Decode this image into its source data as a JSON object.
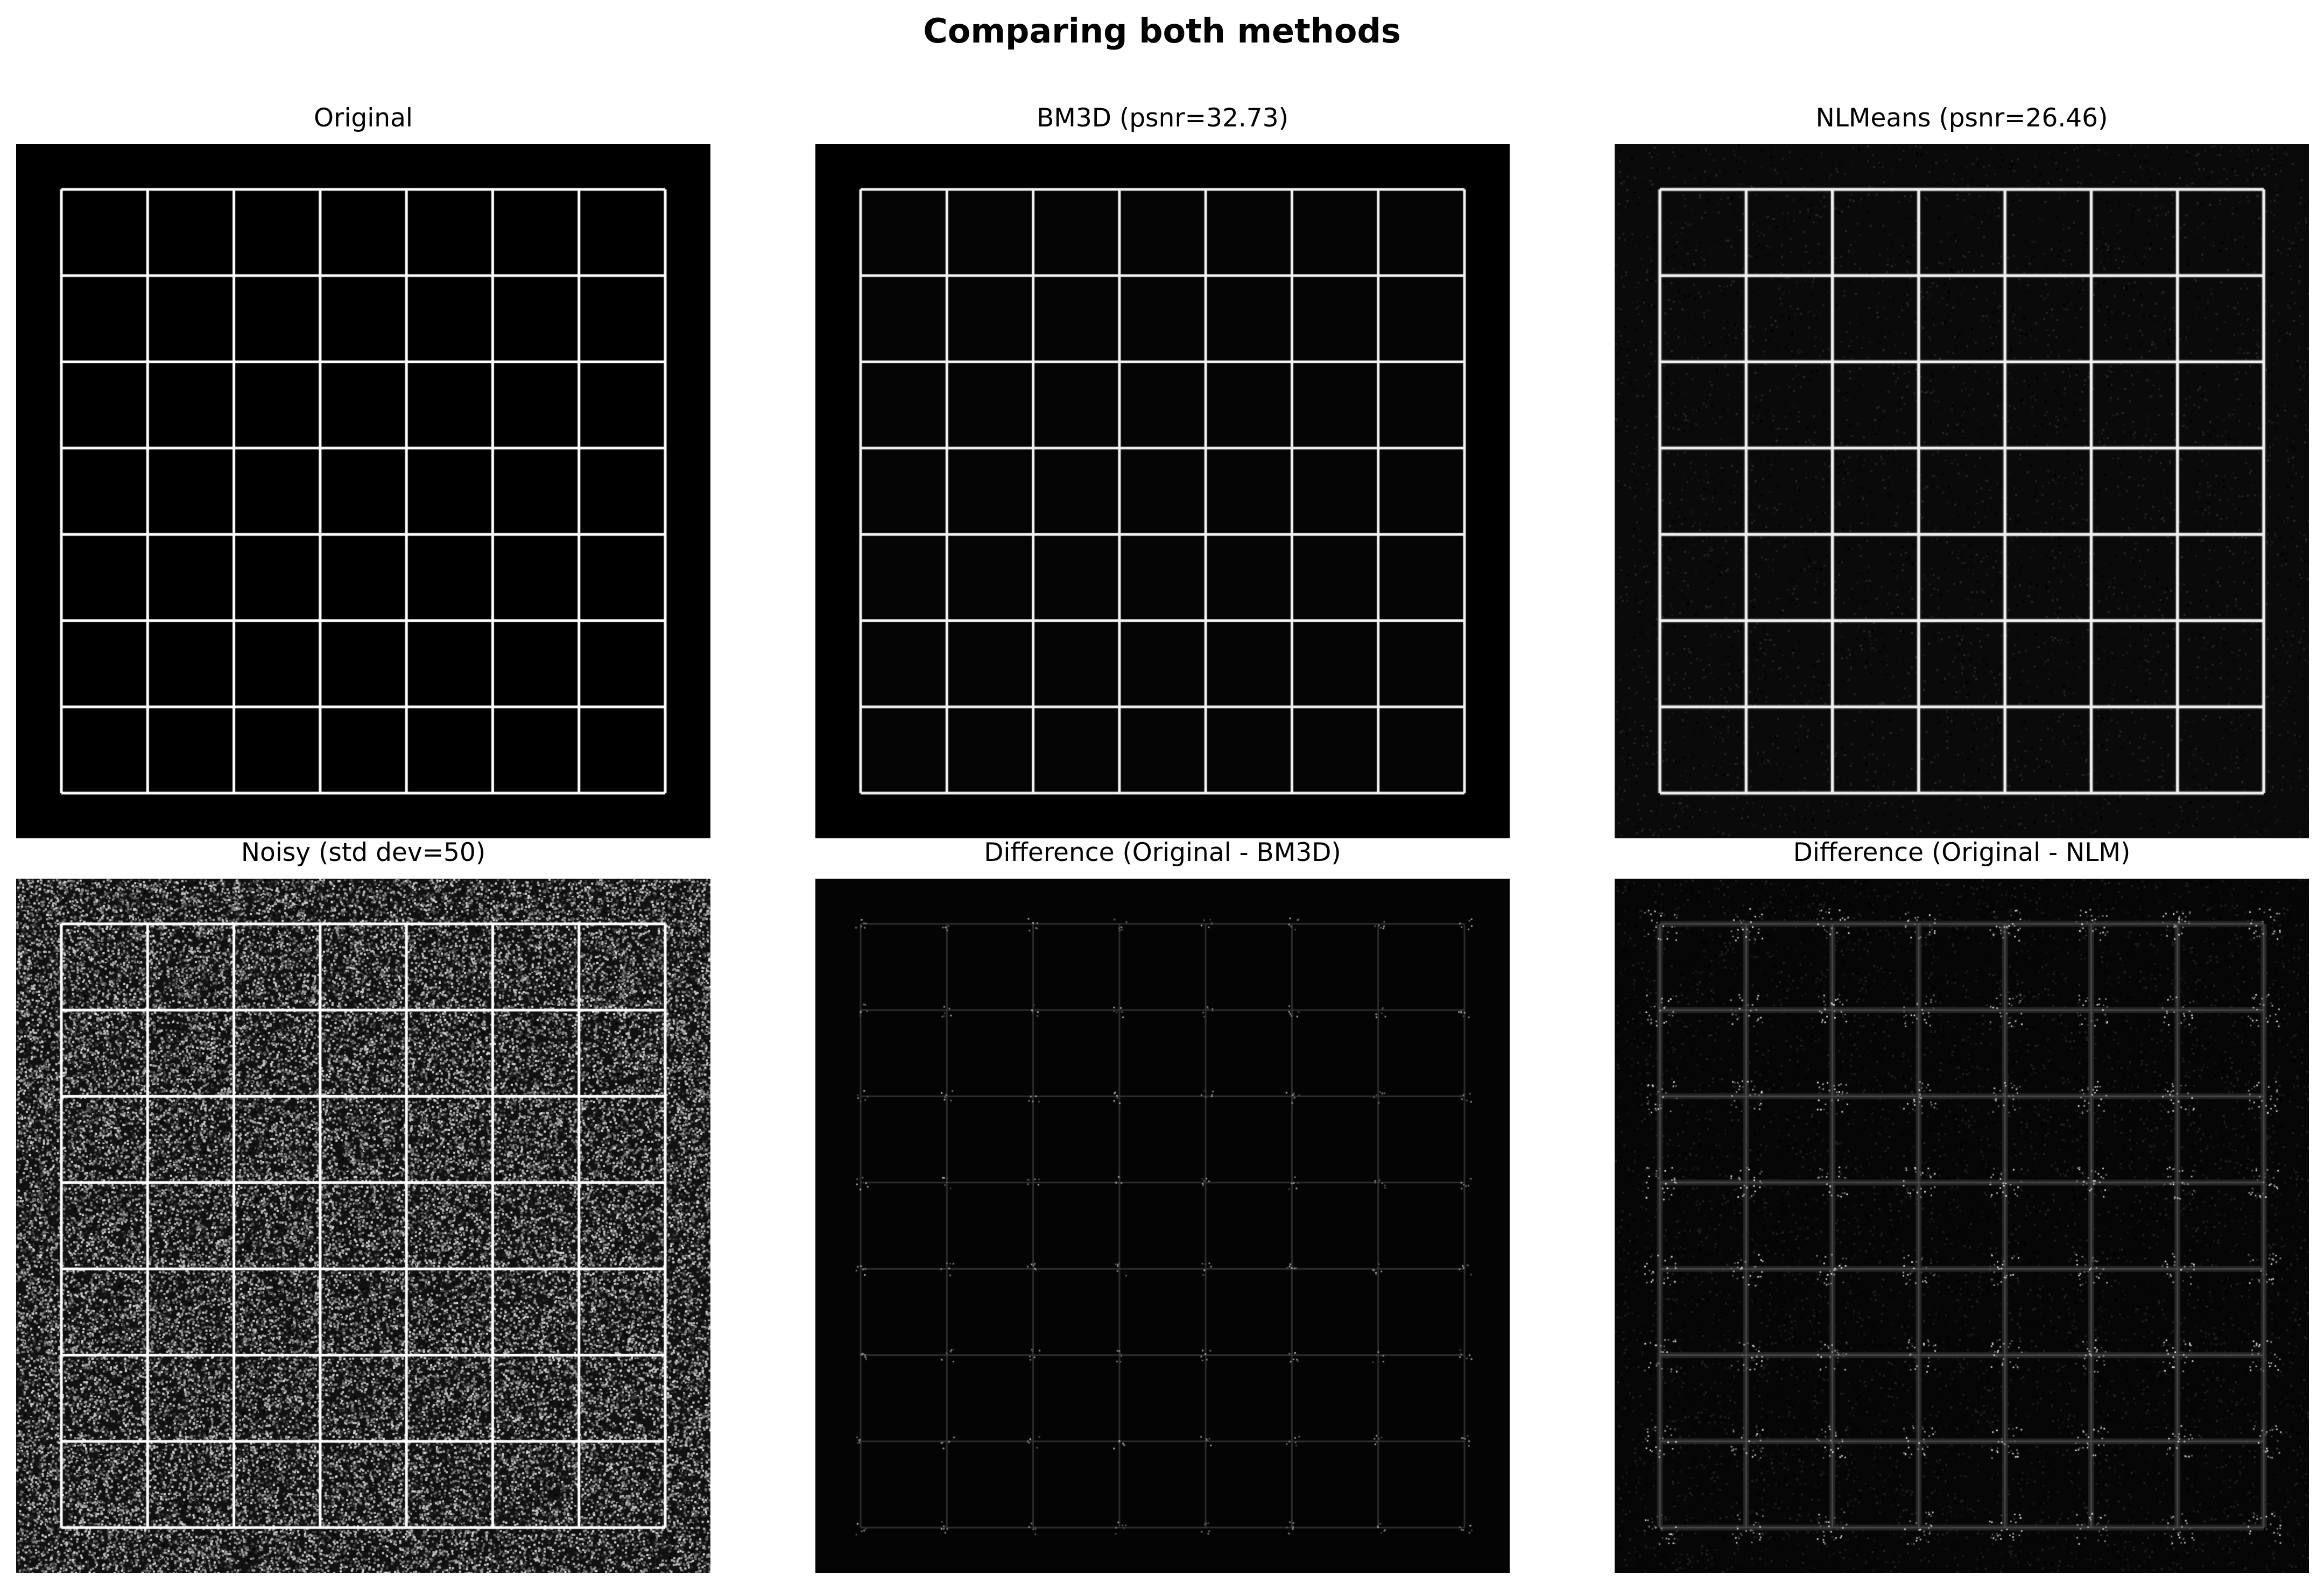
{
  "figure": {
    "title": "Comparing both methods"
  },
  "panels": [
    {
      "title": "Original",
      "kind": "clean"
    },
    {
      "title": "BM3D (psnr=32.73)",
      "kind": "bm3d"
    },
    {
      "title": "NLMeans (psnr=26.46)",
      "kind": "nlm"
    },
    {
      "title": "Noisy (std dev=50)",
      "kind": "noisy"
    },
    {
      "title": "Difference (Original - BM3D)",
      "kind": "diff_bm3d"
    },
    {
      "title": "Difference (Original - NLM)",
      "kind": "diff_nlm"
    }
  ],
  "grid": {
    "cells": 7,
    "line_color": "#ffffff",
    "background": "#000000"
  }
}
